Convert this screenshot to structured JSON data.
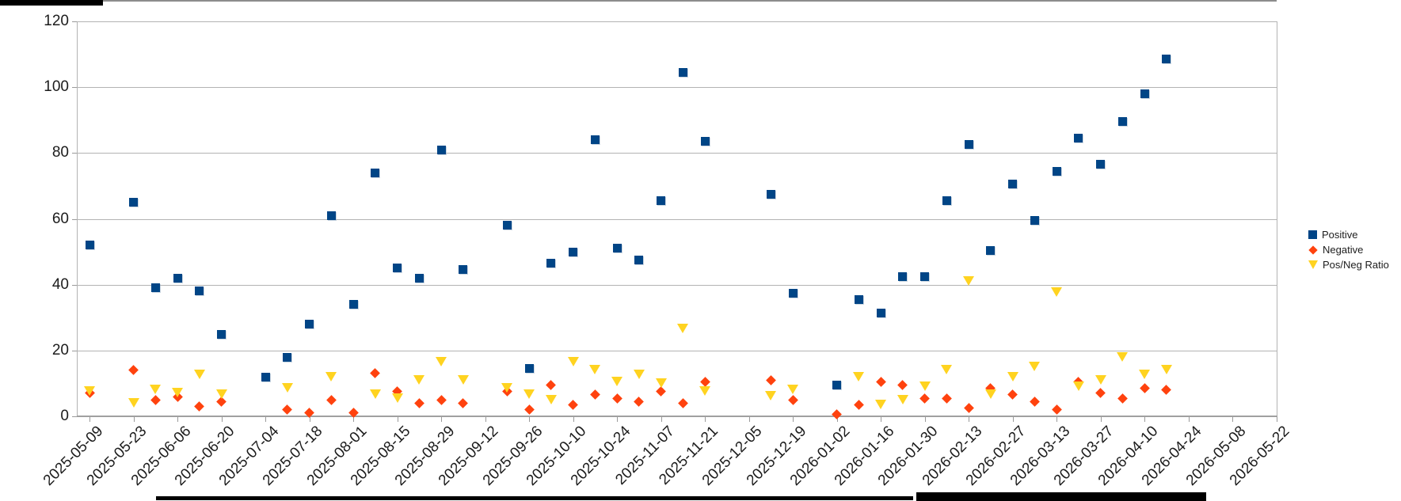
{
  "window": {
    "artifacts": {
      "top_left_bar": true,
      "bottom_bars": true
    }
  },
  "chart_data": {
    "type": "scatter",
    "title": "",
    "xlabel": "",
    "ylabel": "",
    "grid": true,
    "y_axis": {
      "min": 0,
      "max": 120,
      "tick_interval": 20,
      "labels": [
        "0",
        "20",
        "40",
        "60",
        "80",
        "100",
        "120"
      ]
    },
    "x_axis": {
      "tick_labels": [
        "2025-05-09",
        "2025-05-23",
        "2025-06-06",
        "2025-06-20",
        "2025-07-04",
        "2025-07-18",
        "2025-08-01",
        "2025-08-15",
        "2025-08-29",
        "2025-09-12",
        "2025-09-26",
        "2025-10-10",
        "2025-10-24",
        "2025-11-07",
        "2025-11-21",
        "2025-12-05",
        "2025-12-19",
        "2026-01-02",
        "2026-01-16",
        "2026-01-30",
        "2026-02-13",
        "2026-02-27",
        "2026-03-13",
        "2026-03-27",
        "2026-04-10",
        "2026-04-24",
        "2026-05-08",
        "2026-05-22"
      ]
    },
    "legend": {
      "position": "right",
      "items": [
        {
          "label": "Positive",
          "color": "#004586",
          "marker": "square"
        },
        {
          "label": "Negative",
          "color": "#FF420E",
          "marker": "diamond"
        },
        {
          "label": "Pos/Neg Ratio",
          "color": "#FFD320",
          "marker": "triangle-down"
        }
      ]
    },
    "series": [
      {
        "name": "Positive",
        "marker": "square",
        "color": "#004586",
        "points": [
          {
            "date": "2025-05-09",
            "week": 0,
            "value": 52
          },
          {
            "date": "2025-05-23",
            "week": 2,
            "value": 65
          },
          {
            "date": "2025-05-30",
            "week": 3,
            "value": 39
          },
          {
            "date": "2025-06-06",
            "week": 4,
            "value": 42
          },
          {
            "date": "2025-06-13",
            "week": 5,
            "value": 38
          },
          {
            "date": "2025-06-20",
            "week": 6,
            "value": 25
          },
          {
            "date": "2025-07-04",
            "week": 8,
            "value": 12
          },
          {
            "date": "2025-07-11",
            "week": 9,
            "value": 18
          },
          {
            "date": "2025-07-18",
            "week": 10,
            "value": 28
          },
          {
            "date": "2025-07-25",
            "week": 11,
            "value": 61
          },
          {
            "date": "2025-08-01",
            "week": 12,
            "value": 34
          },
          {
            "date": "2025-08-08",
            "week": 13,
            "value": 74
          },
          {
            "date": "2025-08-15",
            "week": 14,
            "value": 45
          },
          {
            "date": "2025-08-22",
            "week": 15,
            "value": 42
          },
          {
            "date": "2025-08-29",
            "week": 16,
            "value": 81
          },
          {
            "date": "2025-09-05",
            "week": 17,
            "value": 44.5
          },
          {
            "date": "2025-09-19",
            "week": 19,
            "value": 58
          },
          {
            "date": "2025-09-26",
            "week": 20,
            "value": 14.5
          },
          {
            "date": "2025-10-03",
            "week": 21,
            "value": 46.5
          },
          {
            "date": "2025-10-10",
            "week": 22,
            "value": 50
          },
          {
            "date": "2025-10-17",
            "week": 23,
            "value": 84
          },
          {
            "date": "2025-10-24",
            "week": 24,
            "value": 51
          },
          {
            "date": "2025-10-31",
            "week": 25,
            "value": 47.5
          },
          {
            "date": "2025-11-07",
            "week": 26,
            "value": 65.5
          },
          {
            "date": "2025-11-14",
            "week": 27,
            "value": 104.5
          },
          {
            "date": "2025-11-21",
            "week": 28,
            "value": 83.5
          },
          {
            "date": "2025-12-12",
            "week": 31,
            "value": 67.5
          },
          {
            "date": "2025-12-19",
            "week": 32,
            "value": 37.5
          },
          {
            "date": "2026-01-02",
            "week": 34,
            "value": 9.5
          },
          {
            "date": "2026-01-09",
            "week": 35,
            "value": 35.5
          },
          {
            "date": "2026-01-16",
            "week": 36,
            "value": 31.5
          },
          {
            "date": "2026-01-23",
            "week": 37,
            "value": 42.5
          },
          {
            "date": "2026-01-30",
            "week": 38,
            "value": 42.5
          },
          {
            "date": "2026-02-06",
            "week": 39,
            "value": 65.5
          },
          {
            "date": "2026-02-13",
            "week": 40,
            "value": 82.5
          },
          {
            "date": "2026-02-20",
            "week": 41,
            "value": 50.5
          },
          {
            "date": "2026-02-27",
            "week": 42,
            "value": 70.5
          },
          {
            "date": "2026-03-06",
            "week": 43,
            "value": 59.5
          },
          {
            "date": "2026-03-13",
            "week": 44,
            "value": 74.5
          },
          {
            "date": "2026-03-20",
            "week": 45,
            "value": 84.5
          },
          {
            "date": "2026-03-27",
            "week": 46,
            "value": 76.5
          },
          {
            "date": "2026-04-03",
            "week": 47,
            "value": 89.5
          },
          {
            "date": "2026-04-10",
            "week": 48,
            "value": 98
          },
          {
            "date": "2026-04-17",
            "week": 49,
            "value": 108.5
          }
        ]
      },
      {
        "name": "Negative",
        "marker": "diamond",
        "color": "#FF420E",
        "points": [
          {
            "date": "2025-05-09",
            "week": 0,
            "value": 7
          },
          {
            "date": "2025-05-23",
            "week": 2,
            "value": 14
          },
          {
            "date": "2025-05-30",
            "week": 3,
            "value": 5
          },
          {
            "date": "2025-06-06",
            "week": 4,
            "value": 6
          },
          {
            "date": "2025-06-13",
            "week": 5,
            "value": 3
          },
          {
            "date": "2025-06-20",
            "week": 6,
            "value": 4.5
          },
          {
            "date": "2025-07-11",
            "week": 9,
            "value": 2
          },
          {
            "date": "2025-07-18",
            "week": 10,
            "value": 1
          },
          {
            "date": "2025-07-25",
            "week": 11,
            "value": 5
          },
          {
            "date": "2025-08-01",
            "week": 12,
            "value": 1
          },
          {
            "date": "2025-08-08",
            "week": 13,
            "value": 13
          },
          {
            "date": "2025-08-15",
            "week": 14,
            "value": 7.5
          },
          {
            "date": "2025-08-22",
            "week": 15,
            "value": 4
          },
          {
            "date": "2025-08-29",
            "week": 16,
            "value": 5
          },
          {
            "date": "2025-09-05",
            "week": 17,
            "value": 4
          },
          {
            "date": "2025-09-19",
            "week": 19,
            "value": 7.5
          },
          {
            "date": "2025-09-26",
            "week": 20,
            "value": 2
          },
          {
            "date": "2025-10-03",
            "week": 21,
            "value": 9.5
          },
          {
            "date": "2025-10-10",
            "week": 22,
            "value": 3.5
          },
          {
            "date": "2025-10-17",
            "week": 23,
            "value": 6.5
          },
          {
            "date": "2025-10-24",
            "week": 24,
            "value": 5.5
          },
          {
            "date": "2025-10-31",
            "week": 25,
            "value": 4.5
          },
          {
            "date": "2025-11-07",
            "week": 26,
            "value": 7.5
          },
          {
            "date": "2025-11-14",
            "week": 27,
            "value": 4
          },
          {
            "date": "2025-11-21",
            "week": 28,
            "value": 10.5
          },
          {
            "date": "2025-12-12",
            "week": 31,
            "value": 11
          },
          {
            "date": "2025-12-19",
            "week": 32,
            "value": 5
          },
          {
            "date": "2026-01-02",
            "week": 34,
            "value": 0.5
          },
          {
            "date": "2026-01-09",
            "week": 35,
            "value": 3.5
          },
          {
            "date": "2026-01-16",
            "week": 36,
            "value": 10.5
          },
          {
            "date": "2026-01-23",
            "week": 37,
            "value": 9.5
          },
          {
            "date": "2026-01-30",
            "week": 38,
            "value": 5.5
          },
          {
            "date": "2026-02-06",
            "week": 39,
            "value": 5.5
          },
          {
            "date": "2026-02-13",
            "week": 40,
            "value": 2.5
          },
          {
            "date": "2026-02-20",
            "week": 41,
            "value": 8.5
          },
          {
            "date": "2026-02-27",
            "week": 42,
            "value": 6.5
          },
          {
            "date": "2026-03-06",
            "week": 43,
            "value": 4.5
          },
          {
            "date": "2026-03-13",
            "week": 44,
            "value": 2
          },
          {
            "date": "2026-03-20",
            "week": 45,
            "value": 10.5
          },
          {
            "date": "2026-03-27",
            "week": 46,
            "value": 7
          },
          {
            "date": "2026-04-03",
            "week": 47,
            "value": 5.5
          },
          {
            "date": "2026-04-10",
            "week": 48,
            "value": 8.5
          },
          {
            "date": "2026-04-17",
            "week": 49,
            "value": 8
          }
        ]
      },
      {
        "name": "Pos/Neg Ratio",
        "marker": "triangle-down",
        "color": "#FFD320",
        "points": [
          {
            "date": "2025-05-09",
            "week": 0,
            "value": 8
          },
          {
            "date": "2025-05-23",
            "week": 2,
            "value": 4.5
          },
          {
            "date": "2025-05-30",
            "week": 3,
            "value": 8.5
          },
          {
            "date": "2025-06-06",
            "week": 4,
            "value": 7.5
          },
          {
            "date": "2025-06-13",
            "week": 5,
            "value": 13
          },
          {
            "date": "2025-06-20",
            "week": 6,
            "value": 7
          },
          {
            "date": "2025-07-11",
            "week": 9,
            "value": 9
          },
          {
            "date": "2025-07-25",
            "week": 11,
            "value": 12.5
          },
          {
            "date": "2025-08-08",
            "week": 13,
            "value": 7
          },
          {
            "date": "2025-08-15",
            "week": 14,
            "value": 6
          },
          {
            "date": "2025-08-22",
            "week": 15,
            "value": 11.5
          },
          {
            "date": "2025-08-29",
            "week": 16,
            "value": 17
          },
          {
            "date": "2025-09-05",
            "week": 17,
            "value": 11.5
          },
          {
            "date": "2025-09-19",
            "week": 19,
            "value": 9
          },
          {
            "date": "2025-09-26",
            "week": 20,
            "value": 7
          },
          {
            "date": "2025-10-03",
            "week": 21,
            "value": 5.5
          },
          {
            "date": "2025-10-10",
            "week": 22,
            "value": 17
          },
          {
            "date": "2025-10-17",
            "week": 23,
            "value": 14.5
          },
          {
            "date": "2025-10-24",
            "week": 24,
            "value": 11
          },
          {
            "date": "2025-10-31",
            "week": 25,
            "value": 13
          },
          {
            "date": "2025-11-07",
            "week": 26,
            "value": 10.5
          },
          {
            "date": "2025-11-14",
            "week": 27,
            "value": 27
          },
          {
            "date": "2025-11-21",
            "week": 28,
            "value": 8
          },
          {
            "date": "2025-12-12",
            "week": 31,
            "value": 6.5
          },
          {
            "date": "2025-12-19",
            "week": 32,
            "value": 8.5
          },
          {
            "date": "2026-01-09",
            "week": 35,
            "value": 12.5
          },
          {
            "date": "2026-01-16",
            "week": 36,
            "value": 4
          },
          {
            "date": "2026-01-23",
            "week": 37,
            "value": 5.5
          },
          {
            "date": "2026-01-30",
            "week": 38,
            "value": 9.5
          },
          {
            "date": "2026-02-06",
            "week": 39,
            "value": 14.5
          },
          {
            "date": "2026-02-13",
            "week": 40,
            "value": 41.5
          },
          {
            "date": "2026-02-20",
            "week": 41,
            "value": 7
          },
          {
            "date": "2026-02-27",
            "week": 42,
            "value": 12.5
          },
          {
            "date": "2026-03-06",
            "week": 43,
            "value": 15.5
          },
          {
            "date": "2026-03-13",
            "week": 44,
            "value": 38
          },
          {
            "date": "2026-03-20",
            "week": 45,
            "value": 9.5
          },
          {
            "date": "2026-03-27",
            "week": 46,
            "value": 11.5
          },
          {
            "date": "2026-04-03",
            "week": 47,
            "value": 18.5
          },
          {
            "date": "2026-04-10",
            "week": 48,
            "value": 13
          },
          {
            "date": "2026-04-17",
            "week": 49,
            "value": 14.5
          }
        ]
      }
    ]
  }
}
